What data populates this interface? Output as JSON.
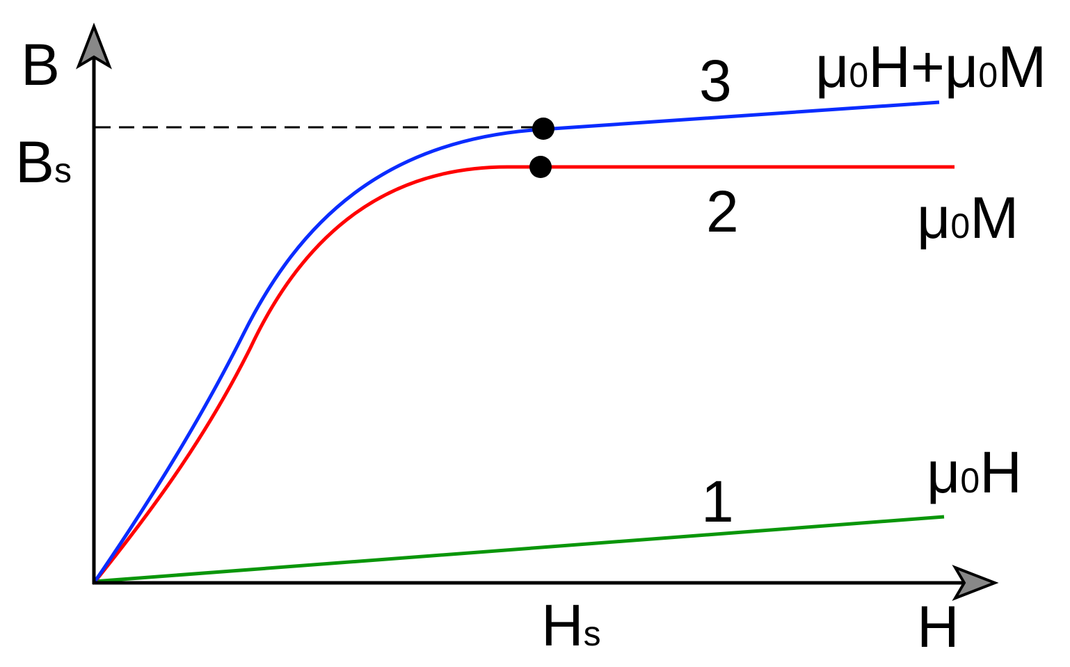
{
  "axes": {
    "y": "B",
    "x": "H"
  },
  "saturation": {
    "b": [
      "B",
      "s"
    ],
    "h": [
      "H",
      "s"
    ]
  },
  "curves": [
    {
      "number": "1",
      "label": [
        "μ",
        "0",
        "H"
      ]
    },
    {
      "number": "2",
      "label": [
        "μ",
        "0",
        "M"
      ]
    },
    {
      "number": "3",
      "label": [
        "μ",
        "0",
        "H+μ",
        "0",
        "M"
      ]
    }
  ]
}
